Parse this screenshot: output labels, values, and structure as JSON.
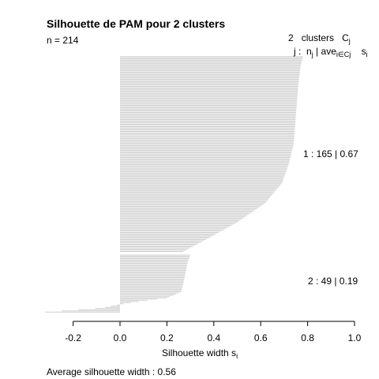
{
  "chart_data": {
    "type": "bar",
    "orientation": "horizontal",
    "title": "Silhouette de PAM pour 2 clusters",
    "n_label": "n = 214",
    "header": {
      "count_label": "2",
      "clusters_word": "clusters",
      "c_letter": "C",
      "c_sub": "j",
      "j_label": "j :",
      "nj_main": "n",
      "nj_sub": "j",
      "sep": "|",
      "ave_main": "ave",
      "ave_sub": "i∈Cj",
      "s_main": "s",
      "s_sub": "i"
    },
    "xlabel_main": "Silhouette width s",
    "xlabel_sub": "i",
    "xlim": [
      -0.2,
      1.0
    ],
    "xticks": [
      "-0.2",
      "0.0",
      "0.2",
      "0.4",
      "0.6",
      "0.8",
      "1.0"
    ],
    "grid": false,
    "bar_color": "#d0d0d0",
    "clusters": [
      {
        "id": 1,
        "label": "1 :   165  |  0.67",
        "n": 165,
        "avg_width": 0.67,
        "profile": [
          [
            0,
            0.78
          ],
          [
            0.05,
            0.77
          ],
          [
            0.15,
            0.76
          ],
          [
            0.3,
            0.75
          ],
          [
            0.45,
            0.74
          ],
          [
            0.55,
            0.72
          ],
          [
            0.65,
            0.69
          ],
          [
            0.75,
            0.62
          ],
          [
            0.85,
            0.5
          ],
          [
            0.93,
            0.38
          ],
          [
            1.0,
            0.27
          ]
        ]
      },
      {
        "id": 2,
        "label": "2 :   49  |  0.19",
        "n": 49,
        "avg_width": 0.19,
        "profile": [
          [
            0,
            0.3
          ],
          [
            0.1,
            0.29
          ],
          [
            0.3,
            0.28
          ],
          [
            0.5,
            0.27
          ],
          [
            0.65,
            0.26
          ],
          [
            0.75,
            0.2
          ],
          [
            0.8,
            0.1
          ],
          [
            0.85,
            0.02
          ],
          [
            0.88,
            -0.02
          ],
          [
            0.93,
            -0.08
          ],
          [
            1.0,
            -0.32
          ]
        ]
      }
    ],
    "average_label": "Average silhouette width :  0.56",
    "average_width": 0.56
  }
}
